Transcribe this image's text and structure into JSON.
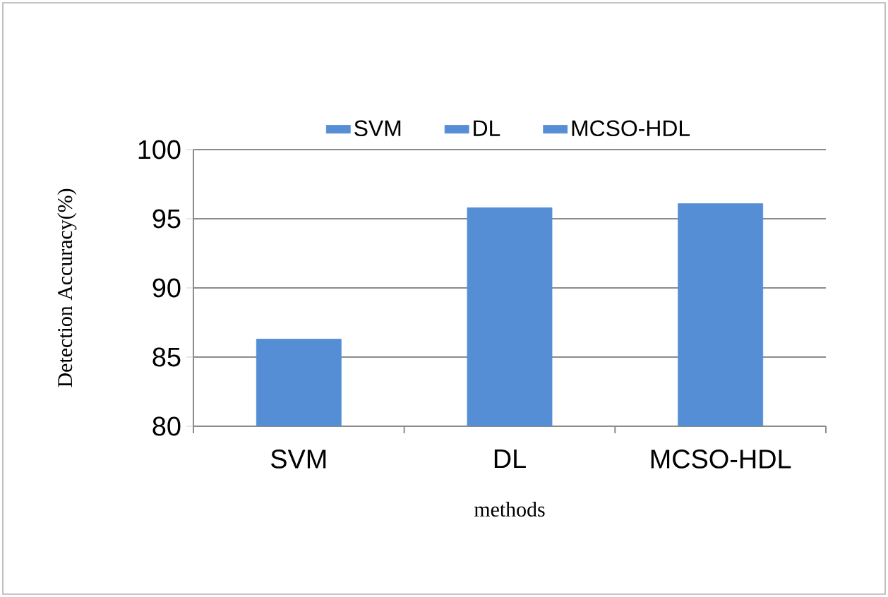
{
  "chart_data": {
    "type": "bar",
    "categories": [
      "SVM",
      "DL",
      "MCSO-HDL"
    ],
    "series": [
      {
        "name": "SVM",
        "color": "#558ed5",
        "values": [
          86.3,
          null,
          null
        ]
      },
      {
        "name": "DL",
        "color": "#558ed5",
        "values": [
          null,
          95.8,
          null
        ]
      },
      {
        "name": "MCSO-HDL",
        "color": "#558ed5",
        "values": [
          null,
          null,
          96.1
        ]
      }
    ],
    "xlabel": "methods",
    "ylabel": "Detection Accuracy(%)",
    "ylim": [
      80,
      100
    ],
    "yticks": [
      80,
      85,
      90,
      95,
      100
    ],
    "grid": "y",
    "legend": "top"
  }
}
